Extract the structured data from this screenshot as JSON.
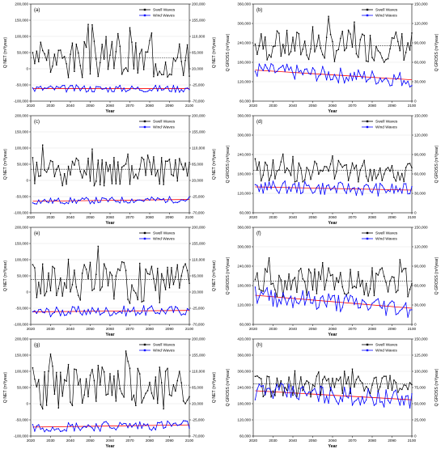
{
  "common": {
    "x_tick_labels": [
      "2020",
      "2030",
      "2040",
      "2050",
      "2060",
      "2070",
      "2080",
      "2090",
      "2100"
    ],
    "xlabel": "Year",
    "legend": [
      "Swell Waves",
      "Wind Waves"
    ],
    "colors": {
      "swell": "#000000",
      "wind": "#0000ff",
      "wind_trend": "#ff0000",
      "swell_trend": "#000000"
    }
  },
  "chart_data": [
    {
      "label": "(a)",
      "type": "line",
      "ylabel_left": "Q NET (m³/year)",
      "ylabel_right": "Q NET (m³/year)",
      "yticks_left": [
        "200,000",
        "150,000",
        "100,000",
        "50,000",
        "0",
        "-50,000",
        "-100,000"
      ],
      "yticks_right": [
        "200,000",
        "155,000",
        "110,000",
        "65,000",
        "20,000",
        "-25,000",
        "-70,000"
      ],
      "ylim_left": [
        -100000,
        200000
      ],
      "ylim_right": [
        -70000,
        200000
      ],
      "swell_base": 30000,
      "swell_amp": 60000,
      "wind_base": -35000,
      "wind_amp": 10000,
      "wind_slope": 0,
      "seed": 3
    },
    {
      "label": "(b)",
      "type": "line",
      "ylabel_left": "Q GROSS (m³/year)",
      "ylabel_right": "Q GROSS (m³/year)",
      "yticks_left": [
        "360,000",
        "300,000",
        "240,000",
        "180,000",
        "120,000",
        "60,000"
      ],
      "yticks_right": [
        "150,000",
        "120,000",
        "90,000",
        "60,000",
        "30,000",
        "0"
      ],
      "ylim_left": [
        60000,
        360000
      ],
      "ylim_right": [
        0,
        150000
      ],
      "swell_base": 230000,
      "swell_amp": 50000,
      "wind_base": 48000,
      "wind_amp": 12000,
      "wind_slope": -15000,
      "seed": 7
    },
    {
      "label": "(c)",
      "type": "line",
      "ylabel_left": "Q NET (m³/year)",
      "ylabel_right": "Q NET (m³/year)",
      "yticks_left": [
        "200,000",
        "150,000",
        "100,000",
        "50,000",
        "0",
        "-50,000",
        "-100,000"
      ],
      "yticks_right": [
        "200,000",
        "155,000",
        "110,000",
        "65,000",
        "20,000",
        "-25,000",
        "-70,000"
      ],
      "ylim_left": [
        -100000,
        200000
      ],
      "ylim_right": [
        -70000,
        200000
      ],
      "swell_base": 30000,
      "swell_amp": 50000,
      "wind_base": -38000,
      "wind_amp": 9000,
      "wind_slope": 5000,
      "seed": 11
    },
    {
      "label": "(d)",
      "type": "line",
      "ylabel_left": "Q GROSS (m³/year)",
      "ylabel_right": "Q GROSS (m³/year)",
      "yticks_left": [
        "360,000",
        "300,000",
        "240,000",
        "180,000",
        "120,000",
        "60,000"
      ],
      "yticks_right": [
        "150,000",
        "120,000",
        "90,000",
        "60,000",
        "30,000",
        "0"
      ],
      "ylim_left": [
        60000,
        360000
      ],
      "ylim_right": [
        0,
        150000
      ],
      "swell_base": 190000,
      "swell_amp": 35000,
      "wind_base": 40000,
      "wind_amp": 10000,
      "wind_slope": -5000,
      "seed": 13
    },
    {
      "label": "(e)",
      "type": "line",
      "ylabel_left": "Q NET (m³/year)",
      "ylabel_right": "Q NET (m³/year)",
      "yticks_left": [
        "200,000",
        "150,000",
        "100,000",
        "50,000",
        "0",
        "-50,000",
        "-100,000"
      ],
      "yticks_right": [
        "200,000",
        "155,000",
        "110,000",
        "65,000",
        "20,000",
        "-25,000",
        "-70,000"
      ],
      "ylim_left": [
        -100000,
        200000
      ],
      "ylim_right": [
        -70000,
        200000
      ],
      "swell_base": 30000,
      "swell_amp": 65000,
      "wind_base": -35000,
      "wind_amp": 14000,
      "wind_slope": 4000,
      "seed": 17
    },
    {
      "label": "(f)",
      "type": "line",
      "ylabel_left": "Q GROSS (m³/year)",
      "ylabel_right": "Q GROSS (m³/year)",
      "yticks_left": [
        "360,000",
        "300,000",
        "240,000",
        "180,000",
        "120,000",
        "60,000"
      ],
      "yticks_right": [
        "150,000",
        "120,000",
        "90,000",
        "60,000",
        "30,000",
        "0"
      ],
      "ylim_left": [
        60000,
        360000
      ],
      "ylim_right": [
        0,
        150000
      ],
      "swell_base": 190000,
      "swell_amp": 45000,
      "wind_base": 45000,
      "wind_amp": 15000,
      "wind_slope": -20000,
      "seed": 19
    },
    {
      "label": "(g)",
      "type": "line",
      "ylabel_left": "Q NET (m³/year)",
      "ylabel_right": "Q NET (m³/year)",
      "yticks_left": [
        "200,000",
        "150,000",
        "100,000",
        "50,000",
        "0",
        "-50,000",
        "-100,000"
      ],
      "yticks_right": [
        "200,000",
        "155,000",
        "110,000",
        "65,000",
        "20,000",
        "-25,000",
        "-70,000"
      ],
      "ylim_left": [
        -100000,
        200000
      ],
      "ylim_right": [
        -70000,
        200000
      ],
      "swell_base": 50000,
      "swell_amp": 70000,
      "wind_base": -45000,
      "wind_amp": 14000,
      "wind_slope": 6000,
      "seed": 23
    },
    {
      "label": "(h)",
      "type": "line",
      "ylabel_left": "Q GROSS (m³/year)",
      "ylabel_right": "Q GROSS (m³/year)",
      "yticks_left": [
        "420,000",
        "360,000",
        "300,000",
        "240,000",
        "180,000",
        "120,000",
        "60,000"
      ],
      "yticks_right": [
        "150,000",
        "125,000",
        "100,000",
        "75,000",
        "50,000",
        "25,000",
        "0"
      ],
      "ylim_left": [
        60000,
        420000
      ],
      "ylim_right": [
        0,
        150000
      ],
      "swell_base": 245000,
      "swell_amp": 40000,
      "wind_base": 70000,
      "wind_amp": 14000,
      "wind_slope": -14000,
      "seed": 29
    }
  ]
}
